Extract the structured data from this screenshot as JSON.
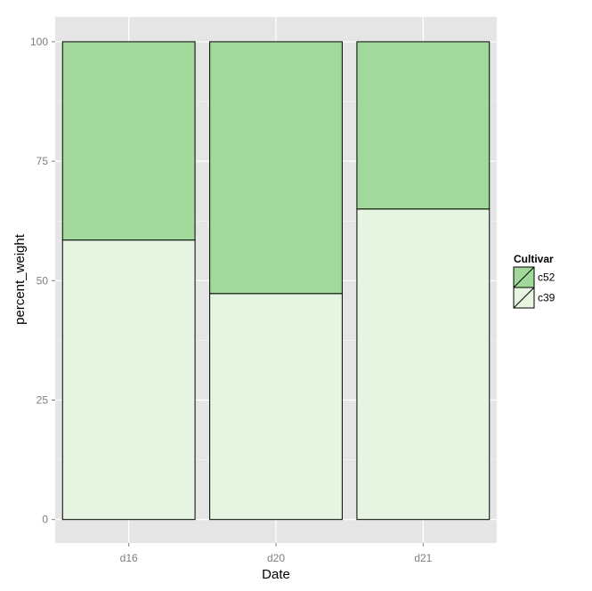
{
  "chart_data": {
    "type": "bar",
    "stacked": true,
    "categories": [
      "d16",
      "d20",
      "d21"
    ],
    "series": [
      {
        "name": "c39",
        "values": [
          58.5,
          47.3,
          65.0
        ],
        "color": "#e5f5e0"
      },
      {
        "name": "c52",
        "values": [
          41.5,
          52.7,
          35.0
        ],
        "color": "#a1d99b"
      }
    ],
    "xlabel": "Date",
    "ylabel": "percent_weight",
    "ylim": [
      -4.9,
      105.2
    ],
    "yticks": [
      0,
      25,
      50,
      75,
      100
    ],
    "grid": true,
    "legend": {
      "title": "Cultivar",
      "position": "right",
      "order": [
        "c52",
        "c39"
      ]
    },
    "panel_background": "#e5e5e5",
    "grid_color": "#ffffff",
    "bar_outline": "#000000"
  }
}
